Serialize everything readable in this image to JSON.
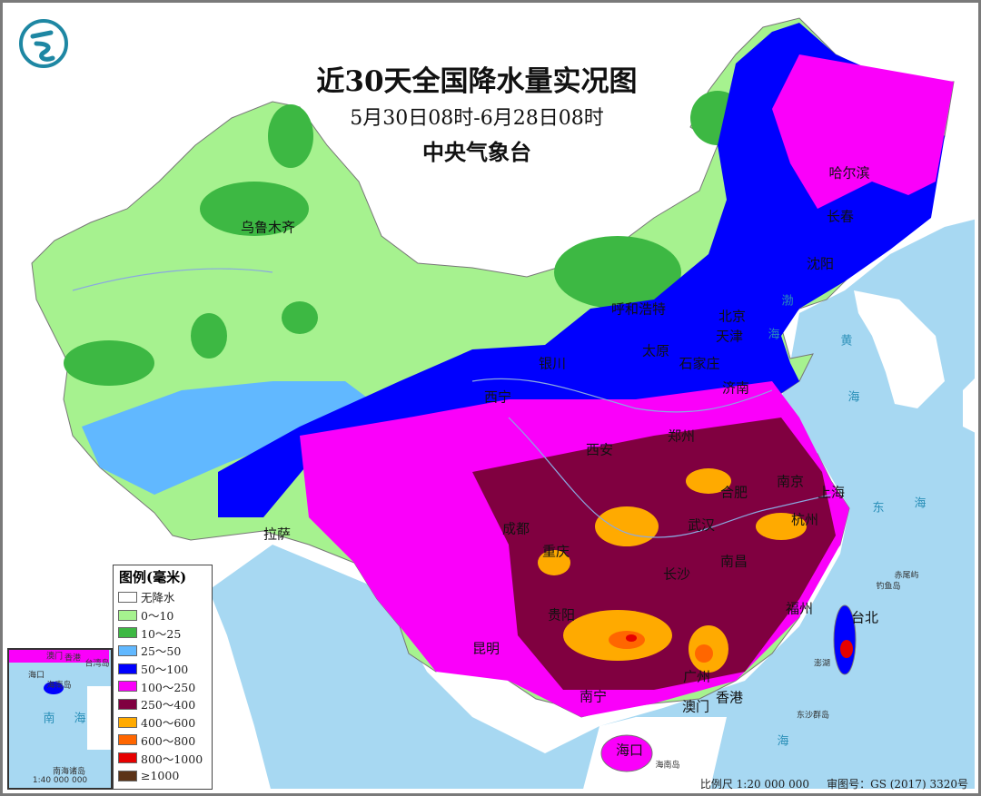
{
  "title": "近30天全国降水量实况图",
  "period": "5月30日08时-6月28日08时",
  "agency": "中央气象台",
  "logo": {
    "icon": "cma-dragon-logo",
    "color": "#1e87a3"
  },
  "legend": {
    "title": "图例(毫米)",
    "items": [
      {
        "label": "无降水",
        "color": "#ffffff"
      },
      {
        "label": "0～10",
        "color": "#a6f28f"
      },
      {
        "label": "10～25",
        "color": "#3db843"
      },
      {
        "label": "25～50",
        "color": "#61b8ff"
      },
      {
        "label": "50～100",
        "color": "#0000fe"
      },
      {
        "label": "100～250",
        "color": "#fa00fa"
      },
      {
        "label": "250～400",
        "color": "#800040"
      },
      {
        "label": "400～600",
        "color": "#ffaa00"
      },
      {
        "label": "600～800",
        "color": "#ff6600"
      },
      {
        "label": "800～1000",
        "color": "#e60000"
      },
      {
        "label": "≥1000",
        "color": "#5c3317"
      }
    ]
  },
  "cities": [
    "乌鲁木齐",
    "哈尔滨",
    "长春",
    "沈阳",
    "呼和浩特",
    "北京",
    "天津",
    "太原",
    "石家庄",
    "银川",
    "济南",
    "西宁",
    "郑州",
    "西安",
    "合肥",
    "南京",
    "上海",
    "杭州",
    "拉萨",
    "成都",
    "武汉",
    "重庆",
    "长沙",
    "南昌",
    "福州",
    "台北",
    "贵阳",
    "昆明",
    "南宁",
    "广州",
    "香港",
    "澳门",
    "海口"
  ],
  "islands": [
    "钓鱼岛",
    "赤尾屿",
    "澎湖",
    "东沙群岛",
    "海南岛"
  ],
  "seas": [
    "渤",
    "海",
    "黄",
    "海",
    "东",
    "海",
    "海"
  ],
  "inset": {
    "labels": [
      "澳门",
      "香港",
      "台湾岛",
      "海口",
      "海南岛",
      "南",
      "海",
      "南海诸岛"
    ],
    "scale": "1:40 000 000"
  },
  "footer": {
    "scale": "比例尺 1:20 000 000",
    "approval": "审图号：GS (2017) 3320号"
  },
  "colors": {
    "sea": "#a7d8f2",
    "neighbor": "#ffffff"
  }
}
